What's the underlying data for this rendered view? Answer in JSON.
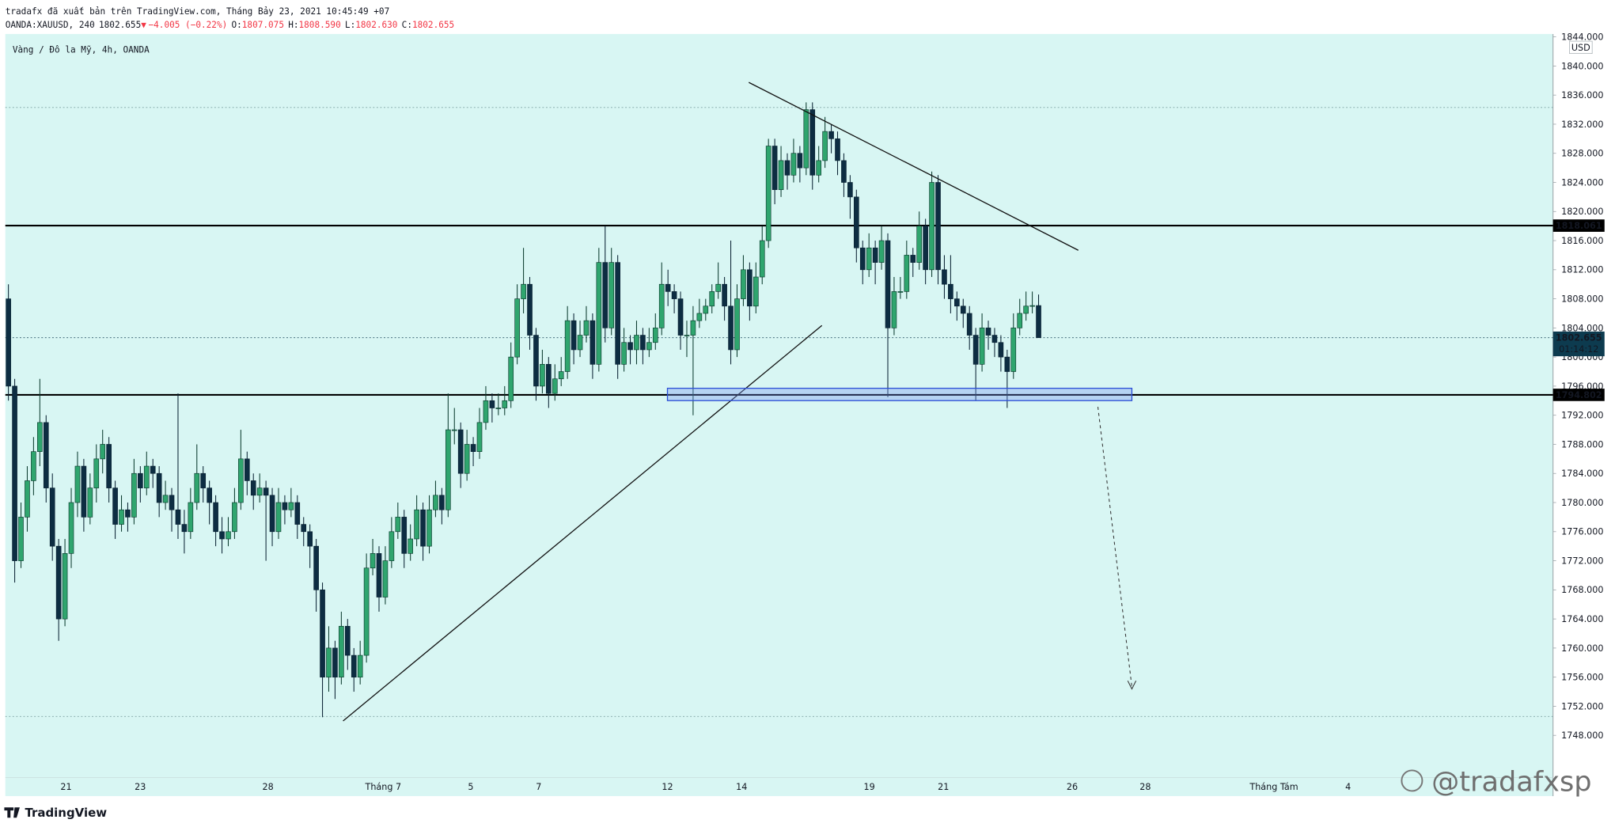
{
  "header": {
    "line1": "tradafx đã xuất bản trên TradingView.com, Tháng Bảy 23, 2021 10:45:49 +07",
    "symbol": "OANDA:XAUUSD, 240",
    "last": "1802.655",
    "arrow": "▼",
    "change": "−4.005 (−0.22%)",
    "ohlc": [
      [
        "O:",
        "1807.075"
      ],
      [
        "H:",
        "1808.590"
      ],
      [
        "L:",
        "1802.630"
      ],
      [
        "C:",
        "1802.655"
      ]
    ]
  },
  "chart_data": {
    "type": "candlestick",
    "legend_title": "Vàng / Đô la Mỹ, 4h, OANDA",
    "currency": "USD",
    "up_color": "#2fa56e",
    "down_color": "#0d2d42",
    "ylim": [
      1742.2,
      1844.4
    ],
    "yticks": [
      {
        "value": 1844,
        "label": "1844.000"
      },
      {
        "value": 1840,
        "label": "1840.000"
      },
      {
        "value": 1836,
        "label": "1836.000"
      },
      {
        "value": 1832,
        "label": "1832.000"
      },
      {
        "value": 1828,
        "label": "1828.000"
      },
      {
        "value": 1824,
        "label": "1824.000"
      },
      {
        "value": 1820,
        "label": "1820.000"
      },
      {
        "value": 1816,
        "label": "1816.000"
      },
      {
        "value": 1812,
        "label": "1812.000"
      },
      {
        "value": 1808,
        "label": "1808.000"
      },
      {
        "value": 1804,
        "label": "1804.000"
      },
      {
        "value": 1800,
        "label": "1800.000"
      },
      {
        "value": 1796,
        "label": "1796.000"
      },
      {
        "value": 1792,
        "label": "1792.000"
      },
      {
        "value": 1788,
        "label": "1788.000"
      },
      {
        "value": 1784,
        "label": "1784.000"
      },
      {
        "value": 1780,
        "label": "1780.000"
      },
      {
        "value": 1776,
        "label": "1776.000"
      },
      {
        "value": 1772,
        "label": "1772.000"
      },
      {
        "value": 1768,
        "label": "1768.000"
      },
      {
        "value": 1764,
        "label": "1764.000"
      },
      {
        "value": 1760,
        "label": "1760.000"
      },
      {
        "value": 1756,
        "label": "1756.000"
      },
      {
        "value": 1752,
        "label": "1752.000"
      },
      {
        "value": 1748,
        "label": "1748.000"
      }
    ],
    "x_labels": [
      "21",
      "23",
      "28",
      "Tháng 7",
      "5",
      "7",
      "12",
      "14",
      "19",
      "21",
      "26",
      "28",
      "Tháng Tám",
      "4"
    ],
    "levels": [
      1818.061,
      1794.802
    ],
    "range_lines": [
      1834.3,
      1750.6
    ],
    "last_price": {
      "value": 1802.655,
      "countdown": "01:14:12"
    },
    "candles": [
      [
        1808,
        1810,
        1794,
        1796
      ],
      [
        1796,
        1797,
        1769,
        1772
      ],
      [
        1772,
        1780,
        1771,
        1778
      ],
      [
        1778,
        1785,
        1776,
        1783
      ],
      [
        1783,
        1789,
        1781,
        1787
      ],
      [
        1787,
        1797,
        1785,
        1791
      ],
      [
        1791,
        1792,
        1780,
        1782
      ],
      [
        1782,
        1784,
        1772,
        1774
      ],
      [
        1774,
        1775,
        1761,
        1764
      ],
      [
        1764,
        1775,
        1763,
        1773
      ],
      [
        1773,
        1782,
        1771,
        1780
      ],
      [
        1780,
        1787,
        1778,
        1785
      ],
      [
        1785,
        1786,
        1776,
        1778
      ],
      [
        1778,
        1784,
        1777,
        1782
      ],
      [
        1782,
        1788,
        1780,
        1786
      ],
      [
        1786,
        1790,
        1784,
        1788
      ],
      [
        1788,
        1789,
        1780,
        1782
      ],
      [
        1782,
        1783,
        1775,
        1777
      ],
      [
        1777,
        1781,
        1776,
        1779
      ],
      [
        1779,
        1780,
        1776,
        1778
      ],
      [
        1778,
        1786,
        1777,
        1784
      ],
      [
        1784,
        1785,
        1780,
        1782
      ],
      [
        1782,
        1787,
        1781,
        1785
      ],
      [
        1785,
        1786,
        1782,
        1784
      ],
      [
        1784,
        1785,
        1778,
        1780
      ],
      [
        1780,
        1783,
        1779,
        1781
      ],
      [
        1781,
        1782,
        1776,
        1779
      ],
      [
        1779,
        1795,
        1775,
        1777
      ],
      [
        1777,
        1779,
        1773,
        1776
      ],
      [
        1776,
        1782,
        1775,
        1780
      ],
      [
        1780,
        1788,
        1779,
        1784
      ],
      [
        1784,
        1785,
        1780,
        1782
      ],
      [
        1782,
        1783,
        1777,
        1780
      ],
      [
        1780,
        1781,
        1774,
        1776
      ],
      [
        1776,
        1778,
        1773,
        1775
      ],
      [
        1775,
        1778,
        1774,
        1776
      ],
      [
        1776,
        1782,
        1775,
        1780
      ],
      [
        1780,
        1790,
        1779,
        1786
      ],
      [
        1786,
        1787,
        1781,
        1783
      ],
      [
        1783,
        1784,
        1779,
        1781
      ],
      [
        1781,
        1784,
        1780,
        1782
      ],
      [
        1782,
        1783,
        1772,
        1781
      ],
      [
        1781,
        1782,
        1774,
        1776
      ],
      [
        1776,
        1782,
        1775,
        1780
      ],
      [
        1780,
        1781,
        1777,
        1779
      ],
      [
        1779,
        1782,
        1778,
        1780
      ],
      [
        1780,
        1781,
        1775,
        1777
      ],
      [
        1777,
        1778,
        1774,
        1776
      ],
      [
        1776,
        1777,
        1771,
        1774
      ],
      [
        1774,
        1775,
        1765,
        1768
      ],
      [
        1768,
        1769,
        1750.5,
        1756
      ],
      [
        1756,
        1763,
        1754,
        1760
      ],
      [
        1760,
        1761,
        1753,
        1756
      ],
      [
        1756,
        1765,
        1755,
        1763
      ],
      [
        1763,
        1764,
        1757,
        1759
      ],
      [
        1759,
        1760,
        1754,
        1756
      ],
      [
        1756,
        1761,
        1755,
        1759
      ],
      [
        1759,
        1773,
        1758,
        1771
      ],
      [
        1771,
        1775,
        1770,
        1773
      ],
      [
        1773,
        1774,
        1765,
        1767
      ],
      [
        1767,
        1774,
        1766,
        1772
      ],
      [
        1772,
        1778,
        1771,
        1776
      ],
      [
        1776,
        1780,
        1775,
        1778
      ],
      [
        1778,
        1779,
        1771,
        1773
      ],
      [
        1773,
        1777,
        1772,
        1775
      ],
      [
        1775,
        1781,
        1774,
        1779
      ],
      [
        1779,
        1780,
        1772,
        1774
      ],
      [
        1774,
        1781,
        1773,
        1779
      ],
      [
        1779,
        1783,
        1778,
        1781
      ],
      [
        1781,
        1782,
        1777,
        1779
      ],
      [
        1779,
        1795,
        1778,
        1790
      ],
      [
        1790,
        1793,
        1788,
        1790
      ],
      [
        1790,
        1791,
        1782,
        1784
      ],
      [
        1784,
        1790,
        1783,
        1788
      ],
      [
        1788,
        1789,
        1785,
        1787
      ],
      [
        1787,
        1793,
        1786,
        1791
      ],
      [
        1791,
        1796,
        1790,
        1794
      ],
      [
        1794,
        1795,
        1791,
        1793
      ],
      [
        1793,
        1795,
        1792,
        1793
      ],
      [
        1793,
        1796,
        1792,
        1794
      ],
      [
        1794,
        1802,
        1793,
        1800
      ],
      [
        1800,
        1810,
        1799,
        1808
      ],
      [
        1808,
        1815,
        1806,
        1810
      ],
      [
        1810,
        1811,
        1801,
        1803
      ],
      [
        1803,
        1804,
        1794,
        1796
      ],
      [
        1796,
        1801,
        1795,
        1799
      ],
      [
        1799,
        1800,
        1793,
        1795
      ],
      [
        1795,
        1799,
        1794,
        1797
      ],
      [
        1797,
        1800,
        1796,
        1798
      ],
      [
        1798,
        1807,
        1797,
        1805
      ],
      [
        1805,
        1806,
        1799,
        1801
      ],
      [
        1801,
        1805,
        1800,
        1803
      ],
      [
        1803,
        1807,
        1802,
        1805
      ],
      [
        1805,
        1806,
        1797,
        1799
      ],
      [
        1799,
        1815,
        1798,
        1813
      ],
      [
        1813,
        1818,
        1802,
        1804
      ],
      [
        1804,
        1815,
        1803,
        1813
      ],
      [
        1813,
        1814,
        1797,
        1799
      ],
      [
        1799,
        1804,
        1798,
        1802
      ],
      [
        1802,
        1803,
        1799,
        1801
      ],
      [
        1801,
        1805,
        1799,
        1803
      ],
      [
        1803,
        1804,
        1799,
        1801
      ],
      [
        1801,
        1804,
        1800,
        1802
      ],
      [
        1802,
        1806,
        1801,
        1804
      ],
      [
        1804,
        1813,
        1803,
        1810
      ],
      [
        1810,
        1812,
        1807,
        1809
      ],
      [
        1809,
        1810,
        1806,
        1808
      ],
      [
        1808,
        1809,
        1801,
        1803
      ],
      [
        1803,
        1805,
        1800,
        1803
      ],
      [
        1803,
        1807,
        1792,
        1805
      ],
      [
        1805,
        1808,
        1804,
        1806
      ],
      [
        1806,
        1808,
        1805,
        1807
      ],
      [
        1807,
        1810,
        1806,
        1809
      ],
      [
        1809,
        1813,
        1808,
        1810
      ],
      [
        1810,
        1811,
        1805,
        1807
      ],
      [
        1807,
        1816,
        1799,
        1801
      ],
      [
        1801,
        1810,
        1800,
        1808
      ],
      [
        1808,
        1814,
        1807,
        1812
      ],
      [
        1812,
        1813,
        1805,
        1807
      ],
      [
        1807,
        1813,
        1806,
        1811
      ],
      [
        1811,
        1818,
        1810,
        1816
      ],
      [
        1816,
        1830,
        1815,
        1829
      ],
      [
        1829,
        1830,
        1821,
        1823
      ],
      [
        1823,
        1829,
        1822,
        1827
      ],
      [
        1827,
        1828,
        1823,
        1825
      ],
      [
        1825,
        1830,
        1824,
        1828
      ],
      [
        1828,
        1829,
        1824,
        1826
      ],
      [
        1826,
        1835,
        1825,
        1834
      ],
      [
        1834,
        1835,
        1823,
        1825
      ],
      [
        1825,
        1829,
        1824,
        1827
      ],
      [
        1827,
        1833,
        1826,
        1831
      ],
      [
        1831,
        1832,
        1828,
        1830
      ],
      [
        1830,
        1831,
        1825,
        1827
      ],
      [
        1827,
        1828,
        1822,
        1824
      ],
      [
        1824,
        1825,
        1819,
        1822
      ],
      [
        1822,
        1823,
        1813,
        1815
      ],
      [
        1815,
        1816,
        1810,
        1812
      ],
      [
        1812,
        1817,
        1811,
        1815
      ],
      [
        1815,
        1816,
        1810,
        1813
      ],
      [
        1813,
        1818,
        1812,
        1816
      ],
      [
        1816,
        1817,
        1794.5,
        1804
      ],
      [
        1804,
        1811,
        1803,
        1809
      ],
      [
        1809,
        1811,
        1808,
        1809
      ],
      [
        1809,
        1816,
        1808,
        1814
      ],
      [
        1814,
        1815,
        1811,
        1813
      ],
      [
        1813,
        1820,
        1812,
        1818
      ],
      [
        1818,
        1819,
        1810,
        1812
      ],
      [
        1812,
        1825.5,
        1811,
        1824
      ],
      [
        1824,
        1825,
        1810,
        1812
      ],
      [
        1812,
        1814,
        1808,
        1810
      ],
      [
        1810,
        1814,
        1806,
        1808
      ],
      [
        1808,
        1809,
        1805,
        1807
      ],
      [
        1807,
        1808,
        1804,
        1806
      ],
      [
        1806,
        1807,
        1801,
        1803
      ],
      [
        1803,
        1804,
        1794,
        1799
      ],
      [
        1799,
        1806,
        1798,
        1804
      ],
      [
        1804,
        1805,
        1801,
        1803
      ],
      [
        1803,
        1804,
        1800,
        1802
      ],
      [
        1802,
        1803,
        1798,
        1800
      ],
      [
        1800,
        1801,
        1793,
        1798
      ],
      [
        1798,
        1806,
        1797,
        1804
      ],
      [
        1804,
        1808,
        1803,
        1806
      ],
      [
        1806,
        1809,
        1805,
        1807
      ],
      [
        1807,
        1809,
        1806,
        1807.075
      ],
      [
        1807.075,
        1808.59,
        1802.63,
        1802.655
      ]
    ]
  },
  "watermark": "@tradafxsp",
  "brand": "TradingView"
}
